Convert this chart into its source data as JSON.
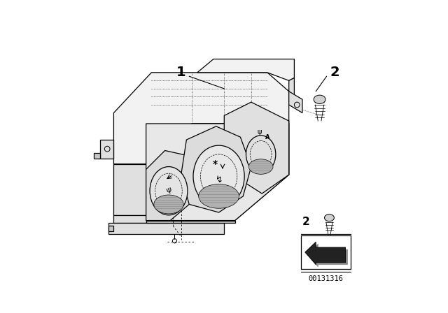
{
  "background_color": "#ffffff",
  "part_number": "00131316",
  "label_1": "1",
  "label_2": "2",
  "figsize": [
    6.4,
    4.48
  ],
  "dpi": 100,
  "lw_main": 0.9,
  "lw_thin": 0.5,
  "lw_dot": 0.5,
  "gray_top": "#f2f2f2",
  "gray_mid": "#e0e0e0",
  "gray_dark": "#c8c8c8",
  "gray_side": "#d0d0d0",
  "white": "#ffffff"
}
